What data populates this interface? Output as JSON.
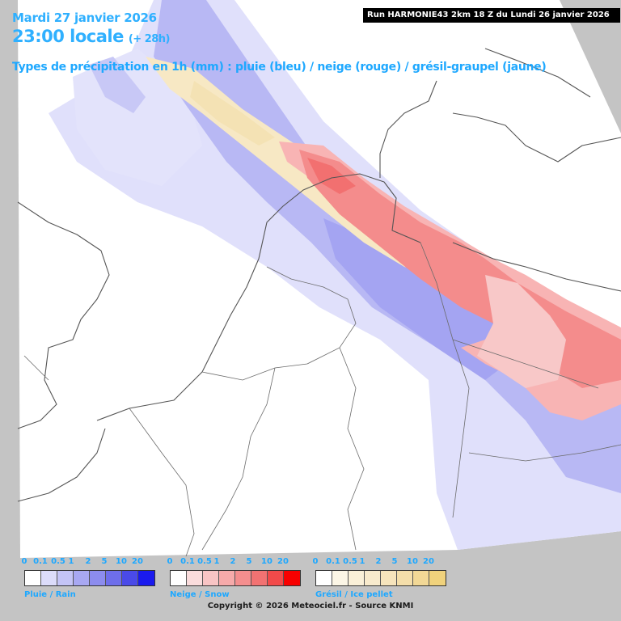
{
  "header": {
    "date": "Mardi 27 janvier 2026",
    "time": "23:00 locale",
    "lead": "(+ 28h)",
    "subtitle": "Types de précipitation en 1h (mm) : pluie (bleu) / neige (rouge) / grésil-graupel (jaune)",
    "run": "Run HARMONIE43 2km 18 Z du Lundi 26 janvier 2026"
  },
  "legends": [
    {
      "label": "Pluie / Rain",
      "ticks": [
        "0",
        "0.1",
        "0.5",
        "1",
        "2",
        "5",
        "10",
        "20"
      ],
      "colors": [
        "#ffffff",
        "#dcdcfa",
        "#c4c4f6",
        "#a8a8f2",
        "#8c8cee",
        "#6e6eea",
        "#4a4ae8",
        "#1a1aee"
      ]
    },
    {
      "label": "Neige / Snow",
      "ticks": [
        "0",
        "0.1",
        "0.5",
        "1",
        "2",
        "5",
        "10",
        "20"
      ],
      "colors": [
        "#ffffff",
        "#fadcdc",
        "#f8c4c4",
        "#f6aaaa",
        "#f48e8e",
        "#f27272",
        "#f24a4a",
        "#f80000"
      ]
    },
    {
      "label": "Grésil / Ice pellet",
      "ticks": [
        "0",
        "0.1",
        "0.5",
        "1",
        "2",
        "5",
        "10",
        "20"
      ],
      "colors": [
        "#ffffff",
        "#fcf6e6",
        "#faf0d8",
        "#f8eacc",
        "#f6e4bc",
        "#f4deaa",
        "#f2d896",
        "#f0d27c"
      ]
    }
  ],
  "copyright": "Copyright © 2026 Meteociel.fr - Source KNMI",
  "colors": {
    "map_background": "#ffffff",
    "outside_domain": "#c4c4c4",
    "rain_light": "#dcdcfa",
    "rain_medium": "#a8a8f2",
    "snow": "#f48e8e",
    "ice_pellet": "#f6e4bc",
    "title_text": "#2fb0ff"
  }
}
